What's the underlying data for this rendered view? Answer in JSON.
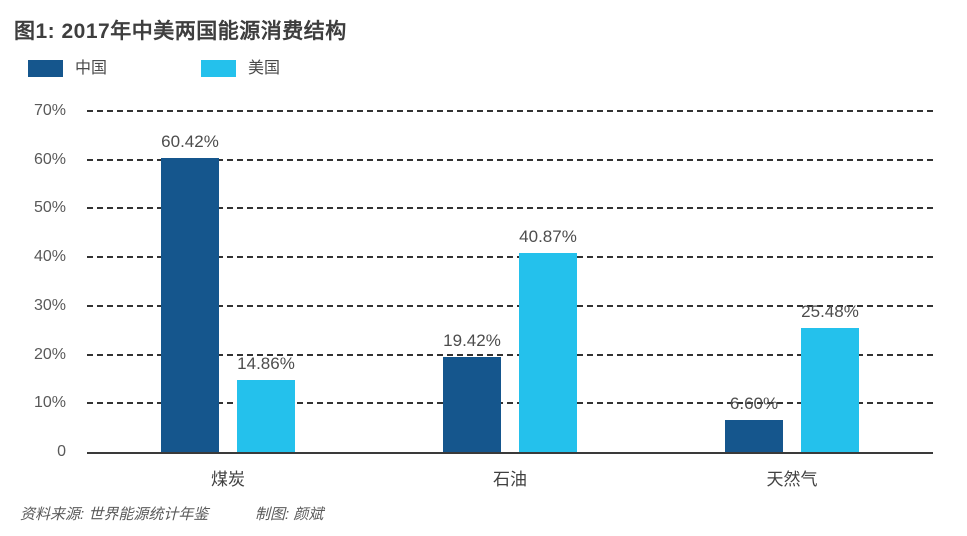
{
  "title": "图1: 2017年中美两国能源消费结构",
  "legend": [
    {
      "label": "中国",
      "slug": "china",
      "color": "#15568D"
    },
    {
      "label": "美国",
      "slug": "us",
      "color": "#24C1EC"
    }
  ],
  "chart_data": {
    "type": "bar",
    "title": "图1: 2017年中美两国能源消费结构",
    "categories": [
      "煤炭",
      "石油",
      "天然气"
    ],
    "category_slugs": [
      "coal",
      "oil",
      "natural-gas"
    ],
    "series": [
      {
        "name": "中国",
        "slug": "china",
        "color": "#15568D",
        "values": [
          60.42,
          19.42,
          6.6
        ],
        "labels": [
          "60.42%",
          "19.42%",
          "6.60%"
        ]
      },
      {
        "name": "美国",
        "slug": "us",
        "color": "#24C1EC",
        "values": [
          14.86,
          40.87,
          25.48
        ],
        "labels": [
          "14.86%",
          "40.87%",
          "25.48%"
        ]
      }
    ],
    "xlabel": "",
    "ylabel": "",
    "ylim": [
      0,
      70
    ],
    "yticks": [
      "70%",
      "60%",
      "50%",
      "40%",
      "30%",
      "20%",
      "10%",
      "0"
    ],
    "ytick_values": [
      70,
      60,
      50,
      40,
      30,
      20,
      10,
      0
    ],
    "grid": "horizontal dashed",
    "legend_position": "top-left",
    "grid_color": "#333333",
    "axis_color": "#3a3a3a"
  },
  "footer": {
    "source": "资料来源: 世界能源统计年鉴",
    "credit": "制图: 颜斌"
  }
}
